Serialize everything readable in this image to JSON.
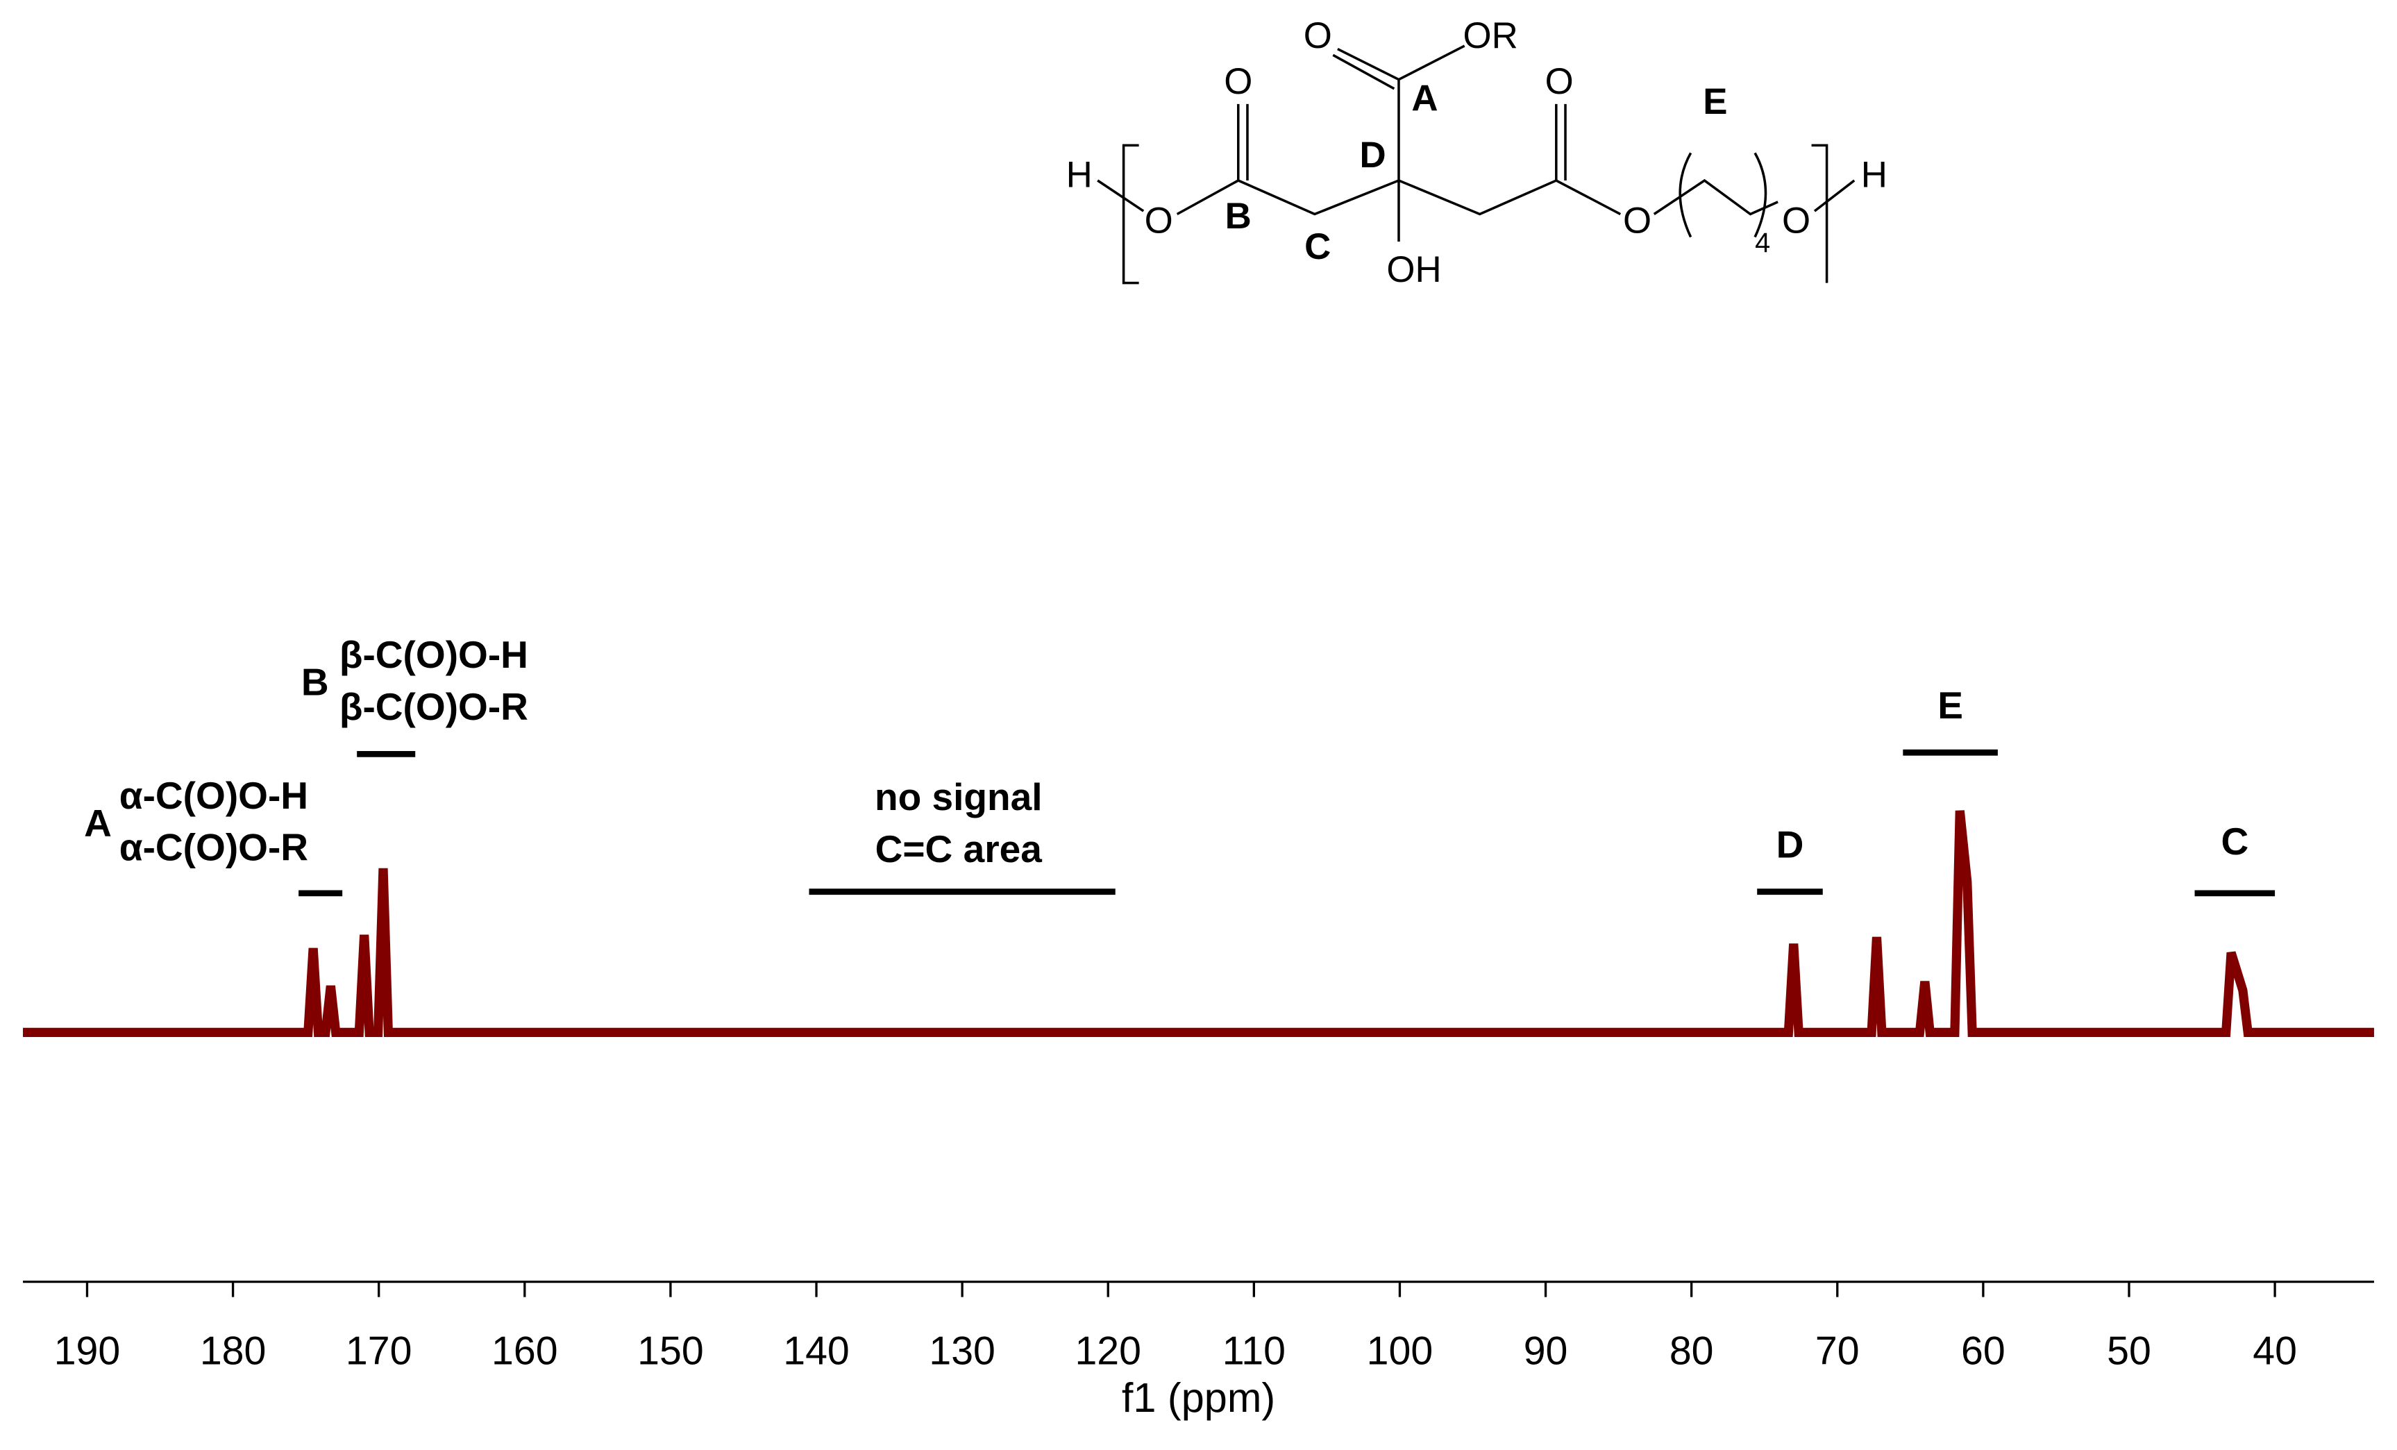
{
  "structure": {
    "labels": [
      "O",
      "OR",
      "A",
      "O",
      "O",
      "E",
      "H",
      "O",
      "B",
      "D",
      "C",
      "OH",
      "O",
      "4",
      "O",
      "H"
    ]
  },
  "chart_data": {
    "type": "line",
    "x_label": "f1 (ppm)",
    "xlim": [
      194.4,
      33.2
    ],
    "xticks": [
      190,
      180,
      170,
      160,
      150,
      140,
      130,
      120,
      110,
      100,
      90,
      80,
      70,
      60,
      50,
      40
    ],
    "x": [
      194.4,
      174.85,
      174.5,
      174.15,
      173.65,
      173.3,
      172.95,
      171.35,
      171.0,
      170.65,
      170.05,
      169.7,
      169.35,
      73.35,
      73.0,
      72.65,
      67.65,
      67.3,
      66.95,
      64.35,
      64.0,
      63.65,
      61.95,
      61.6,
      61.1,
      60.75,
      43.35,
      43.0,
      42.2,
      41.85,
      33.2
    ],
    "series": [
      {
        "color": "#800000",
        "values": [
          0,
          0,
          38,
          0,
          0,
          21,
          0,
          0,
          44,
          0,
          0,
          74,
          0,
          0,
          40,
          0,
          0,
          43,
          0,
          0,
          23,
          0,
          0,
          100,
          68,
          0,
          0,
          36,
          19,
          0,
          0
        ]
      }
    ],
    "annotations": [
      {
        "letter": "A",
        "lines": [
          "α-C(O)O-H",
          "α-C(O)O-R"
        ],
        "range": [
          175.5,
          172.5
        ]
      },
      {
        "letter": "B",
        "lines": [
          "β-C(O)O-H",
          "β-C(O)O-R"
        ],
        "range": [
          171.5,
          167.5
        ]
      },
      {
        "lines": [
          "no signal",
          "C=C area"
        ],
        "range": [
          140.5,
          119.5
        ]
      },
      {
        "letter": "D",
        "range": [
          75.5,
          71
        ]
      },
      {
        "letter": "E",
        "range": [
          65.5,
          59
        ]
      },
      {
        "letter": "C",
        "range": [
          45.5,
          40
        ]
      }
    ]
  }
}
